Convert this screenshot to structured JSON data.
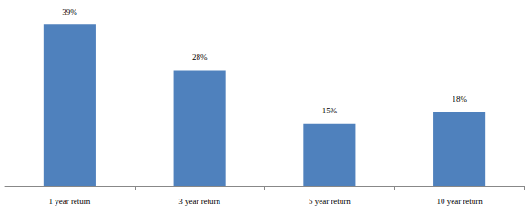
{
  "chart_data": {
    "type": "bar",
    "categories": [
      "1 year return",
      "3 year return",
      "5 year return",
      "10 year return"
    ],
    "values": [
      39,
      28,
      15,
      18
    ],
    "value_labels": [
      "39%",
      "28%",
      "15%",
      "18%"
    ],
    "color": "#4f81bd",
    "ylim": [
      0,
      45
    ],
    "grid": false,
    "data_labels": true,
    "tick_labels": "x"
  }
}
